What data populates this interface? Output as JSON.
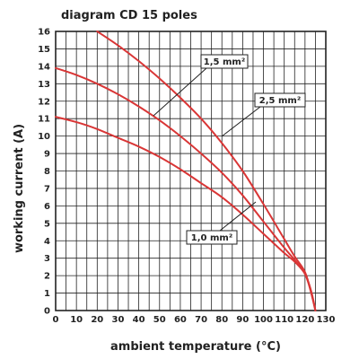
{
  "chart_data": {
    "type": "line",
    "title": "diagram CD 15 poles",
    "xlabel": "ambient temperature (°C)",
    "ylabel": "working current (A)",
    "xlim": [
      0,
      130
    ],
    "ylim": [
      0,
      16
    ],
    "x_ticks": [
      "0",
      "10",
      "20",
      "30",
      "40",
      "50",
      "60",
      "70",
      "80",
      "90",
      "100",
      "110",
      "120",
      "130"
    ],
    "y_ticks": [
      "0",
      "1",
      "2",
      "3",
      "4",
      "5",
      "6",
      "7",
      "8",
      "9",
      "10",
      "11",
      "12",
      "13",
      "14",
      "15",
      "16"
    ],
    "x_grid_step": 5,
    "y_grid_step": 1,
    "grid": true,
    "line_color": "#d93636",
    "series": [
      {
        "name": "1,5 mm²",
        "x": [
          20,
          30,
          40,
          50,
          60,
          70,
          80,
          90,
          100,
          110,
          115,
          120,
          123,
          125
        ],
        "y": [
          16,
          15.2,
          14.3,
          13.3,
          12.2,
          11.0,
          9.6,
          8.0,
          6.1,
          4.1,
          3.1,
          2.2,
          1.0,
          0
        ]
      },
      {
        "name": "2,5 mm²",
        "x": [
          0,
          10,
          20,
          30,
          40,
          50,
          60,
          70,
          80,
          90,
          100,
          110,
          115,
          120,
          123,
          125
        ],
        "y": [
          13.9,
          13.5,
          13.0,
          12.4,
          11.7,
          10.9,
          10.0,
          9.0,
          7.9,
          6.6,
          5.1,
          3.6,
          2.9,
          2.1,
          1.0,
          0
        ]
      },
      {
        "name": "1,0 mm²",
        "x": [
          0,
          10,
          20,
          30,
          40,
          50,
          60,
          70,
          80,
          90,
          100,
          110,
          115,
          120,
          123,
          125
        ],
        "y": [
          11.1,
          10.8,
          10.4,
          9.9,
          9.4,
          8.8,
          8.1,
          7.3,
          6.5,
          5.5,
          4.4,
          3.3,
          2.8,
          2.1,
          1.1,
          0
        ]
      }
    ]
  }
}
